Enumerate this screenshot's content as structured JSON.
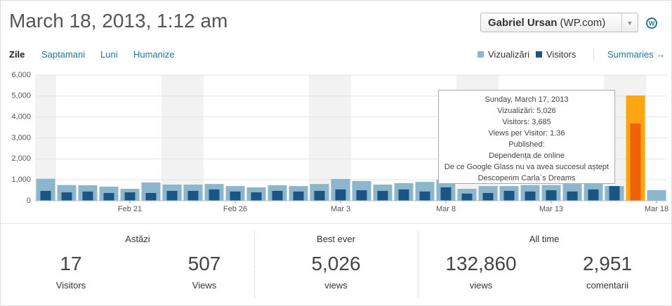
{
  "header": {
    "title": "March 18, 2013, 1:12 am",
    "user": "Gabriel Ursan",
    "user_suffix": "(WP.com)"
  },
  "tabs": [
    "Zile",
    "Saptamani",
    "Luni",
    "Humanize"
  ],
  "summaries": "Summaries",
  "chart_data": {
    "type": "bar",
    "categories": [
      null,
      null,
      null,
      null,
      "Feb 21",
      null,
      null,
      null,
      null,
      "Feb 26",
      null,
      null,
      null,
      null,
      "Mar 3",
      null,
      null,
      null,
      null,
      "Mar 8",
      null,
      null,
      null,
      null,
      "Mar 13",
      null,
      null,
      null,
      null,
      "Mar 18"
    ],
    "series": [
      {
        "name": "Vizualizări",
        "color": "#8cb6cc",
        "values": [
          1050,
          750,
          740,
          670,
          570,
          870,
          770,
          770,
          800,
          700,
          640,
          740,
          700,
          800,
          1040,
          940,
          770,
          840,
          900,
          1000,
          570,
          700,
          700,
          750,
          750,
          800,
          900,
          700,
          5026,
          507
        ]
      },
      {
        "name": "Visitors",
        "color": "#1b5586",
        "values": [
          470,
          400,
          440,
          370,
          400,
          370,
          470,
          470,
          540,
          440,
          400,
          470,
          440,
          470,
          540,
          500,
          470,
          540,
          440,
          640,
          340,
          370,
          470,
          440,
          500,
          440,
          540,
          700,
          3685,
          17
        ]
      }
    ],
    "highlight_index": 28,
    "highlight_colors": [
      "#ffa511",
      "#f0620a"
    ],
    "ylim": [
      0,
      6000
    ],
    "yticks": [
      0,
      {
        "value": 1000,
        "label": "1,000"
      },
      {
        "value": 2000,
        "label": "2,000"
      },
      {
        "value": 3000,
        "label": "3,000"
      },
      {
        "value": 4000,
        "label": "4,000"
      },
      {
        "value": 5000,
        "label": "5,000"
      },
      {
        "value": 6000,
        "label": "6,000"
      }
    ],
    "grid": true,
    "tooltip": {
      "title": "Sunday, March 17, 2013",
      "lines": [
        "Vizualizări: 5,026",
        "Visitors: 3,685",
        "Views per Visitor: 1.36",
        "Published:",
        "Dependența de online",
        "De ce Google Glass nu va avea succesul aștept",
        "Descoperim Carla`s Dreams"
      ]
    }
  },
  "stats": [
    {
      "title": "Astăzi",
      "items": [
        {
          "value": "17",
          "label": "Visitors"
        },
        {
          "value": "507",
          "label": "Views"
        }
      ]
    },
    {
      "title": "Best ever",
      "items": [
        {
          "value": "5,026",
          "label": "views"
        }
      ]
    },
    {
      "title": "All time",
      "items": [
        {
          "value": "132,860",
          "label": "views"
        },
        {
          "value": "2,951",
          "label": "comentarii"
        }
      ]
    }
  ]
}
